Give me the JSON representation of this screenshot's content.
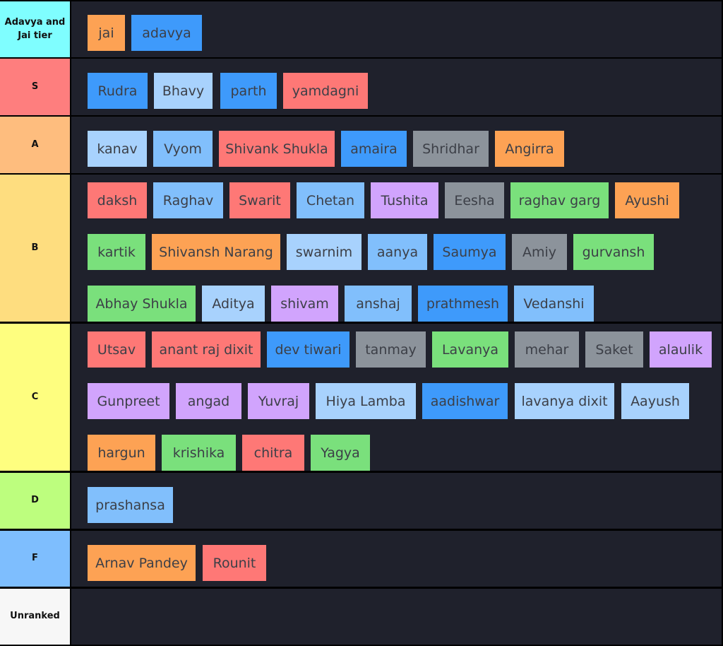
{
  "palette": {
    "orange": "#fda254",
    "blue": "#3e9afb",
    "lightblue": "#a8d2fd",
    "skyblue": "#81bffc",
    "red": "#fe7876",
    "gray": "#8c939b",
    "green": "#7ae07c",
    "purple": "#d1a4fd"
  },
  "tiers": [
    {
      "label": "Adavya and Jai tier",
      "color": "#7ffeff",
      "items": [
        {
          "name": "jai",
          "color": "orange"
        },
        {
          "name": "adavya",
          "color": "blue"
        }
      ]
    },
    {
      "label": "S",
      "color": "#fe7e7e",
      "items": [
        {
          "name": "Rudra",
          "color": "blue"
        },
        {
          "name": "Bhavy",
          "color": "lightblue"
        },
        {
          "name": "parth",
          "color": "blue"
        },
        {
          "name": "yamdagni",
          "color": "red"
        }
      ]
    },
    {
      "label": "A",
      "color": "#febd7e",
      "items": [
        {
          "name": "kanav",
          "color": "lightblue"
        },
        {
          "name": "Vyom",
          "color": "skyblue"
        },
        {
          "name": "Shivank Shukla",
          "color": "red"
        },
        {
          "name": "amaira",
          "color": "blue"
        },
        {
          "name": "Shridhar",
          "color": "gray"
        },
        {
          "name": "Angirra",
          "color": "orange"
        }
      ]
    },
    {
      "label": "B",
      "color": "#fedd7f",
      "items": [
        {
          "name": "daksh",
          "color": "red"
        },
        {
          "name": "Raghav",
          "color": "skyblue"
        },
        {
          "name": "Swarit",
          "color": "red"
        },
        {
          "name": "Chetan",
          "color": "skyblue"
        },
        {
          "name": "Tushita",
          "color": "purple"
        },
        {
          "name": "Eesha",
          "color": "gray"
        },
        {
          "name": "raghav garg",
          "color": "green"
        },
        {
          "name": "Ayushi",
          "color": "orange"
        },
        {
          "name": "kartik",
          "color": "green"
        },
        {
          "name": "Shivansh Narang",
          "color": "orange"
        },
        {
          "name": "swarnim",
          "color": "lightblue"
        },
        {
          "name": "aanya",
          "color": "skyblue"
        },
        {
          "name": "Saumya",
          "color": "blue"
        },
        {
          "name": "Amiy",
          "color": "gray"
        },
        {
          "name": "gurvansh",
          "color": "green"
        },
        {
          "name": "Abhay Shukla",
          "color": "green"
        },
        {
          "name": "Aditya",
          "color": "lightblue"
        },
        {
          "name": "shivam",
          "color": "purple"
        },
        {
          "name": "anshaj",
          "color": "skyblue"
        },
        {
          "name": "prathmesh",
          "color": "blue"
        },
        {
          "name": "Vedanshi",
          "color": "skyblue"
        }
      ]
    },
    {
      "label": "C",
      "color": "#fefe7f",
      "items": [
        {
          "name": "Utsav",
          "color": "red"
        },
        {
          "name": "anant raj dixit",
          "color": "red"
        },
        {
          "name": "dev tiwari",
          "color": "blue"
        },
        {
          "name": "tanmay",
          "color": "gray"
        },
        {
          "name": "Lavanya",
          "color": "green"
        },
        {
          "name": "mehar",
          "color": "gray"
        },
        {
          "name": "Saket",
          "color": "gray"
        },
        {
          "name": "alaulik",
          "color": "purple"
        },
        {
          "name": "Gunpreet",
          "color": "purple"
        },
        {
          "name": "angad",
          "color": "purple"
        },
        {
          "name": "Yuvraj",
          "color": "purple"
        },
        {
          "name": "Hiya Lamba",
          "color": "lightblue"
        },
        {
          "name": "aadishwar",
          "color": "blue"
        },
        {
          "name": "lavanya dixit",
          "color": "lightblue"
        },
        {
          "name": "Aayush",
          "color": "lightblue"
        },
        {
          "name": "hargun",
          "color": "orange"
        },
        {
          "name": "krishika",
          "color": "green"
        },
        {
          "name": "chitra",
          "color": "red"
        },
        {
          "name": "Yagya",
          "color": "green"
        }
      ]
    },
    {
      "label": "D",
      "color": "#bdfe7e",
      "items": [
        {
          "name": "prashansa",
          "color": "skyblue"
        }
      ]
    },
    {
      "label": "F",
      "color": "#7ebefe",
      "items": [
        {
          "name": "Arnav Pandey",
          "color": "orange"
        },
        {
          "name": "Rounit",
          "color": "red"
        }
      ]
    },
    {
      "label": "Unranked",
      "color": "#f7f7f7",
      "items": []
    }
  ]
}
